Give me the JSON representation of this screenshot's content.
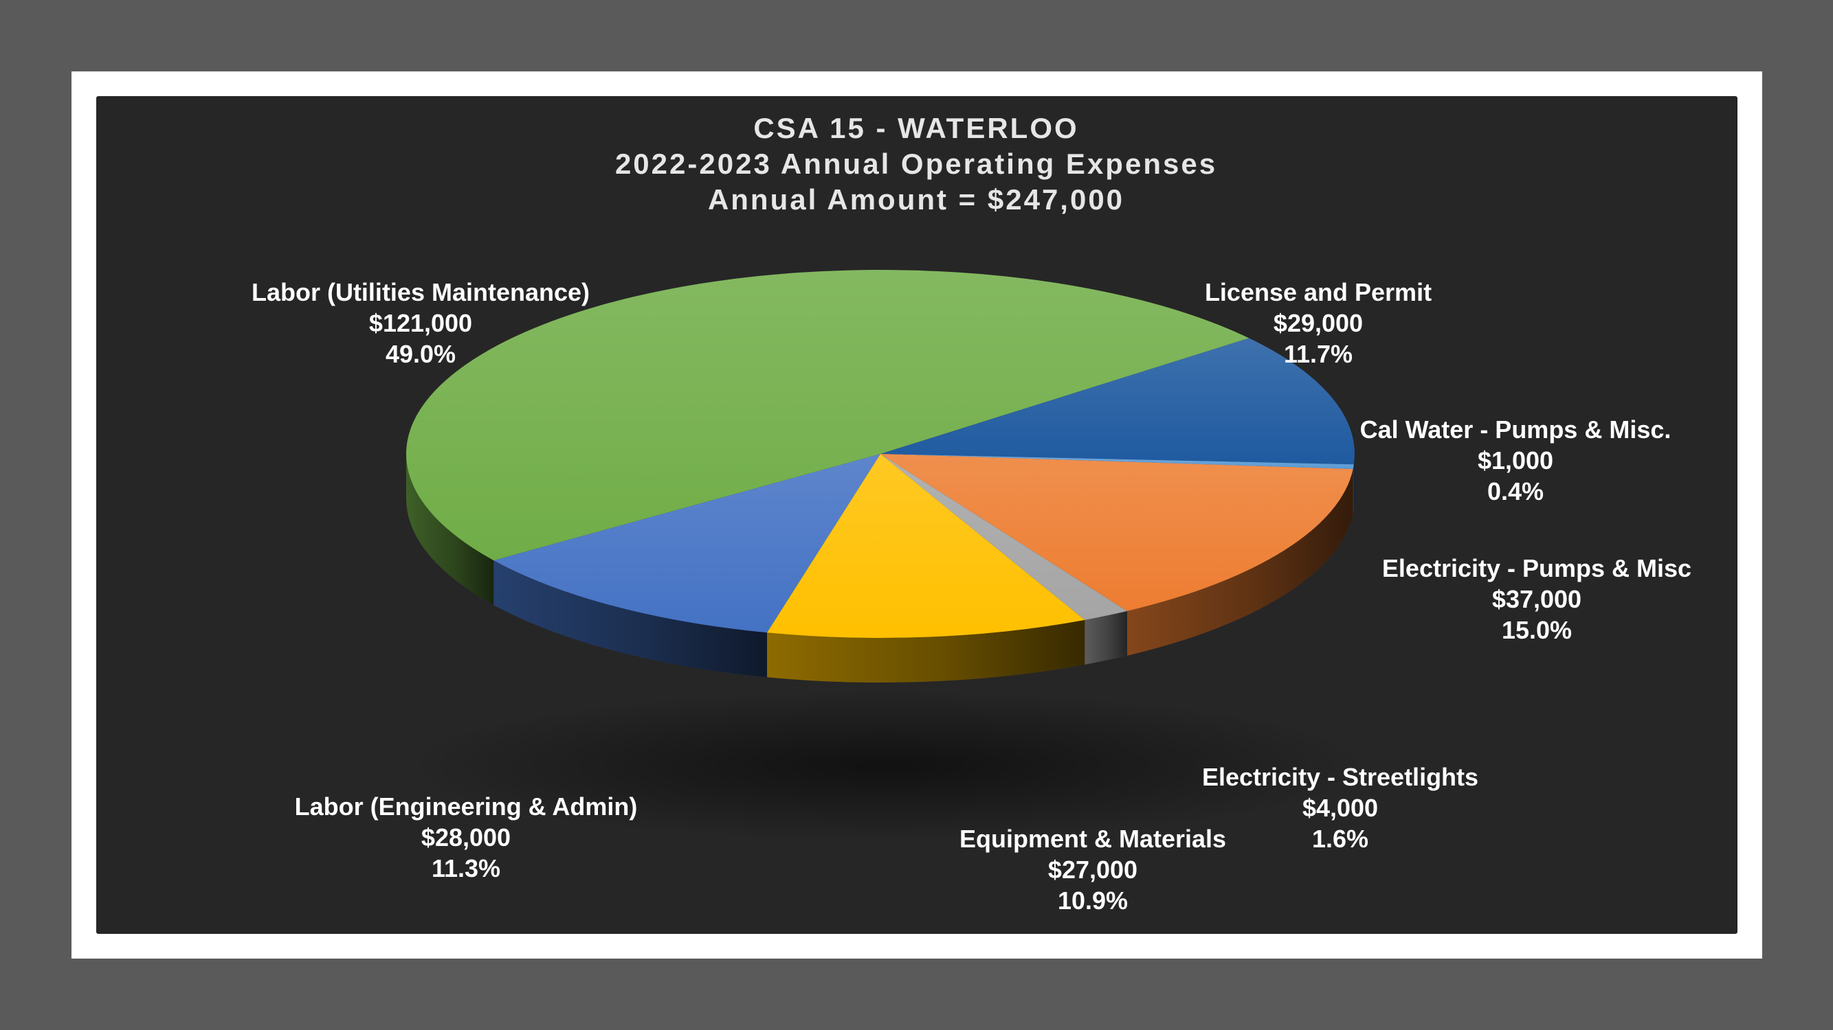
{
  "chart_data": {
    "type": "pie",
    "title": [
      "CSA 15 - WATERLOO",
      "2022-2023 Annual Operating Expenses",
      "Annual Amount = $247,000"
    ],
    "slices": [
      {
        "label": "License and Permit",
        "amount": "$29,000",
        "percent": "11.7%",
        "value": 29000,
        "color": "#1f5aa0"
      },
      {
        "label": "Cal Water - Pumps & Misc.",
        "amount": "$1,000",
        "percent": "0.4%",
        "value": 1000,
        "color": "#5b9bd5"
      },
      {
        "label": "Electricity - Pumps & Misc",
        "amount": "$37,000",
        "percent": "15.0%",
        "value": 37000,
        "color": "#ed7d31"
      },
      {
        "label": "Electricity - Streetlights",
        "amount": "$4,000",
        "percent": "1.6%",
        "value": 4000,
        "color": "#a5a5a5"
      },
      {
        "label": "Equipment & Materials",
        "amount": "$27,000",
        "percent": "10.9%",
        "value": 27000,
        "color": "#ffc000"
      },
      {
        "label": "Labor (Engineering & Admin)",
        "amount": "$28,000",
        "percent": "11.3%",
        "value": 28000,
        "color": "#4472c4"
      },
      {
        "label": "Labor (Utilities Maintenance)",
        "amount": "$121,000",
        "percent": "49.0%",
        "value": 121000,
        "color": "#70ad47"
      }
    ]
  }
}
